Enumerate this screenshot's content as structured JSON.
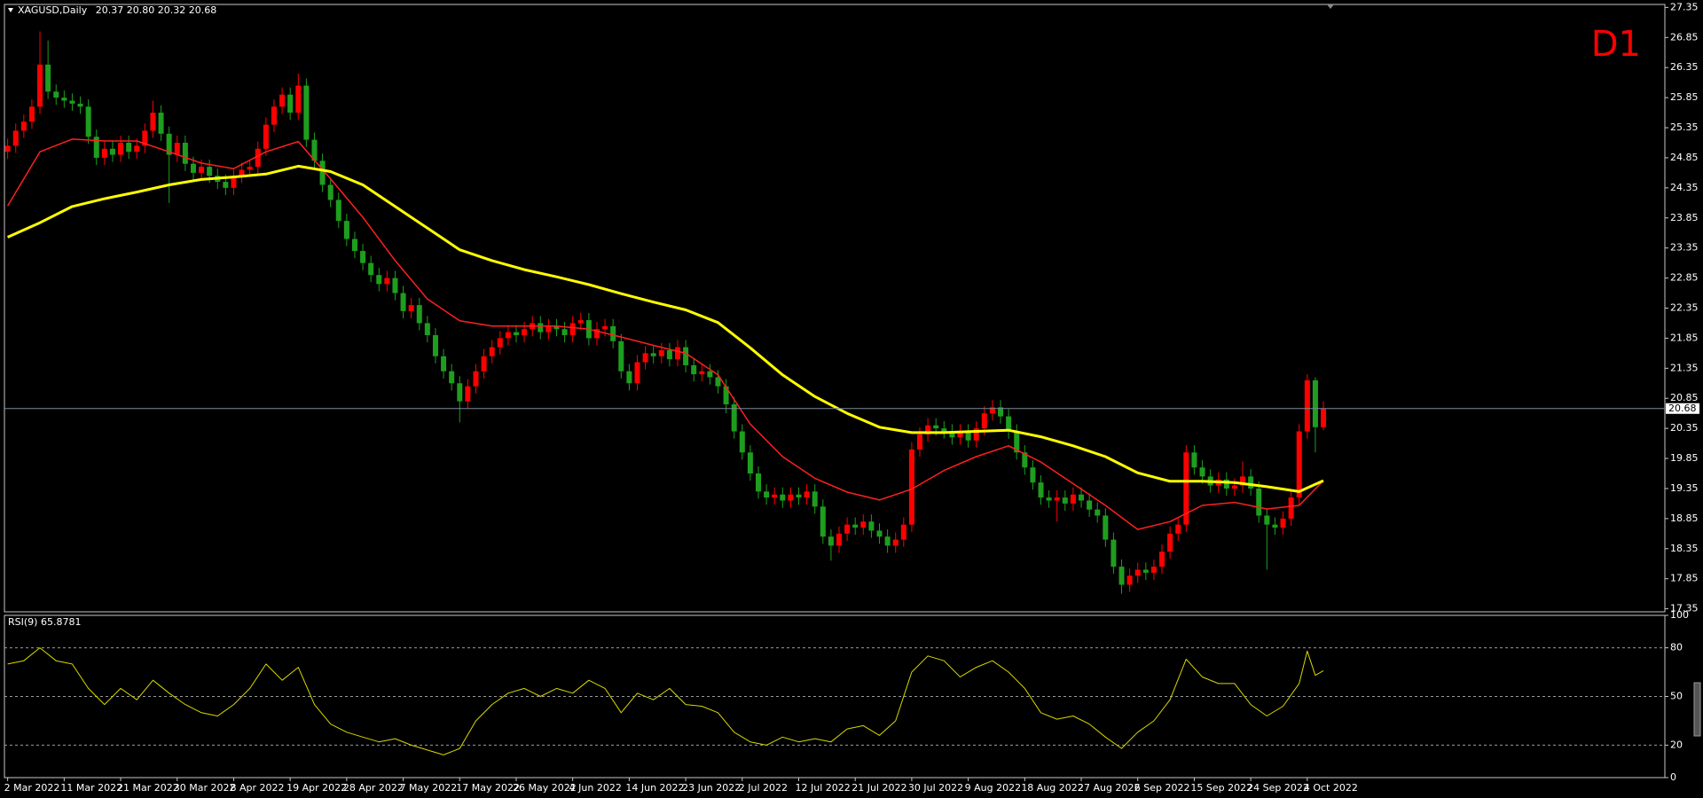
{
  "chart_data": [
    {
      "type": "candlestick",
      "title": "XAGUSD,Daily",
      "ohlc_labels": [
        "20.37",
        "20.80",
        "20.32",
        "20.68"
      ],
      "timeframe_label": "D1",
      "colors": {
        "up": "#ff0000",
        "down": "#1e9e1e"
      },
      "xlim": [
        -0.4,
        205.3
      ],
      "xticks": [
        {
          "value": 0,
          "label": "2 Mar 2022"
        },
        {
          "value": 7,
          "label": "11 Mar 2022"
        },
        {
          "value": 14,
          "label": "21 Mar 2022"
        },
        {
          "value": 21,
          "label": "30 Mar 2022"
        },
        {
          "value": 28,
          "label": "8 Apr 2022"
        },
        {
          "value": 35,
          "label": "19 Apr 2022"
        },
        {
          "value": 42,
          "label": "28 Apr 2022"
        },
        {
          "value": 49,
          "label": "7 May 2022"
        },
        {
          "value": 56,
          "label": "17 May 2022"
        },
        {
          "value": 63,
          "label": "26 May 2022"
        },
        {
          "value": 70,
          "label": "4 Jun 2022"
        },
        {
          "value": 77,
          "label": "14 Jun 2022"
        },
        {
          "value": 84,
          "label": "23 Jun 2022"
        },
        {
          "value": 91,
          "label": "2 Jul 2022"
        },
        {
          "value": 98,
          "label": "12 Jul 2022"
        },
        {
          "value": 105,
          "label": "21 Jul 2022"
        },
        {
          "value": 112,
          "label": "30 Jul 2022"
        },
        {
          "value": 119,
          "label": "9 Aug 2022"
        },
        {
          "value": 126,
          "label": "18 Aug 2022"
        },
        {
          "value": 133,
          "label": "27 Aug 2022"
        },
        {
          "value": 140,
          "label": "6 Sep 2022"
        },
        {
          "value": 147,
          "label": "15 Sep 2022"
        },
        {
          "value": 154,
          "label": "24 Sep 2022"
        },
        {
          "value": 161,
          "label": "4 Oct 2022"
        }
      ],
      "ylim": [
        17.3,
        27.4
      ],
      "yticks": [
        27.35,
        26.85,
        26.35,
        25.85,
        25.35,
        24.85,
        24.35,
        23.85,
        23.35,
        22.85,
        22.35,
        21.85,
        21.35,
        20.85,
        20.35,
        19.85,
        19.35,
        18.85,
        18.35,
        17.85,
        17.35
      ],
      "current_price": 20.68,
      "open": [
        24.95,
        25.05,
        25.3,
        25.45,
        25.7,
        26.4,
        25.95,
        25.85,
        25.8,
        25.75,
        25.7,
        25.2,
        24.85,
        25.0,
        24.9,
        25.1,
        24.95,
        25.05,
        25.3,
        25.6,
        25.25,
        24.9,
        25.1,
        24.75,
        24.6,
        24.7,
        24.55,
        24.45,
        24.35,
        24.55,
        24.65,
        24.7,
        25.0,
        25.4,
        25.7,
        25.9,
        25.6,
        26.05,
        25.15,
        24.8,
        24.4,
        24.15,
        23.8,
        23.5,
        23.3,
        23.1,
        22.9,
        22.75,
        22.85,
        22.6,
        22.3,
        22.4,
        22.1,
        21.9,
        21.55,
        21.3,
        21.1,
        20.8,
        21.05,
        21.3,
        21.55,
        21.7,
        21.85,
        21.95,
        21.9,
        22.0,
        22.1,
        21.95,
        22.05,
        22.0,
        21.9,
        22.1,
        22.15,
        21.85,
        22.0,
        22.05,
        21.8,
        21.3,
        21.1,
        21.45,
        21.6,
        21.55,
        21.65,
        21.5,
        21.7,
        21.4,
        21.25,
        21.3,
        21.2,
        21.05,
        20.75,
        20.3,
        19.95,
        19.6,
        19.3,
        19.2,
        19.25,
        19.15,
        19.25,
        19.2,
        19.3,
        19.05,
        18.55,
        18.4,
        18.6,
        18.75,
        18.7,
        18.8,
        18.65,
        18.55,
        18.4,
        18.5,
        18.75,
        20.0,
        20.25,
        20.4,
        20.35,
        20.3,
        20.2,
        20.3,
        20.15,
        20.35,
        20.6,
        20.7,
        20.55,
        20.3,
        19.95,
        19.7,
        19.45,
        19.2,
        19.15,
        19.2,
        19.1,
        19.25,
        19.15,
        19.0,
        18.9,
        18.5,
        18.05,
        17.75,
        17.9,
        18.0,
        17.95,
        18.05,
        18.3,
        18.6,
        18.75,
        19.95,
        19.7,
        19.55,
        19.4,
        19.5,
        19.35,
        19.4,
        19.55,
        19.35,
        18.9,
        18.75,
        18.7,
        18.85,
        19.2,
        20.3,
        21.15,
        20.37
      ],
      "high": [
        25.17,
        25.42,
        25.57,
        25.82,
        26.95,
        26.8,
        26.07,
        25.97,
        25.92,
        25.87,
        25.82,
        25.32,
        25.12,
        25.12,
        25.22,
        25.22,
        25.17,
        25.42,
        25.8,
        25.72,
        25.37,
        25.22,
        25.22,
        24.87,
        24.82,
        24.82,
        24.67,
        24.57,
        24.67,
        24.77,
        24.82,
        25.12,
        25.52,
        25.82,
        26.02,
        26.02,
        26.25,
        26.17,
        25.27,
        24.92,
        24.52,
        24.27,
        23.92,
        23.62,
        23.42,
        23.22,
        23.02,
        22.97,
        22.97,
        22.72,
        22.52,
        22.52,
        22.22,
        22.02,
        21.67,
        21.42,
        21.22,
        21.17,
        21.42,
        21.67,
        21.82,
        21.97,
        22.07,
        22.07,
        22.12,
        22.22,
        22.22,
        22.17,
        22.17,
        22.12,
        22.22,
        22.27,
        22.27,
        22.12,
        22.17,
        22.17,
        21.92,
        21.42,
        21.57,
        21.72,
        21.72,
        21.77,
        21.77,
        21.82,
        21.82,
        21.52,
        21.42,
        21.42,
        21.32,
        21.17,
        20.87,
        20.42,
        20.07,
        19.72,
        19.42,
        19.37,
        19.37,
        19.37,
        19.37,
        19.42,
        19.42,
        19.17,
        18.67,
        18.72,
        18.87,
        18.87,
        18.92,
        18.92,
        18.77,
        18.67,
        18.62,
        18.87,
        20.12,
        20.37,
        20.52,
        20.52,
        20.47,
        20.42,
        20.42,
        20.42,
        20.47,
        20.72,
        20.82,
        20.82,
        20.67,
        20.42,
        20.07,
        19.82,
        19.57,
        19.32,
        19.32,
        19.32,
        19.37,
        19.37,
        19.27,
        19.12,
        19.02,
        18.62,
        18.17,
        18.02,
        18.12,
        18.12,
        18.17,
        18.42,
        18.72,
        18.87,
        20.07,
        20.07,
        19.82,
        19.67,
        19.62,
        19.62,
        19.52,
        19.8,
        19.67,
        19.47,
        19.02,
        18.87,
        18.97,
        19.32,
        20.42,
        21.25,
        21.2,
        20.8
      ],
      "low": [
        24.83,
        24.93,
        25.18,
        25.33,
        25.58,
        25.83,
        25.73,
        25.68,
        25.63,
        25.58,
        25.08,
        24.73,
        24.73,
        24.78,
        24.78,
        24.83,
        24.83,
        24.93,
        25.18,
        25.13,
        24.1,
        24.78,
        24.63,
        24.48,
        24.48,
        24.43,
        24.33,
        24.23,
        24.23,
        24.43,
        24.53,
        24.58,
        24.88,
        25.28,
        25.58,
        25.48,
        25.48,
        25.03,
        24.68,
        24.28,
        24.03,
        23.68,
        23.38,
        23.18,
        22.98,
        22.78,
        22.63,
        22.63,
        22.48,
        22.18,
        22.18,
        21.98,
        21.78,
        21.43,
        21.18,
        20.98,
        20.45,
        20.68,
        20.93,
        21.18,
        21.43,
        21.58,
        21.73,
        21.78,
        21.78,
        21.88,
        21.83,
        21.83,
        21.88,
        21.78,
        21.78,
        21.98,
        21.73,
        21.73,
        21.88,
        21.68,
        21.18,
        20.98,
        20.98,
        21.33,
        21.43,
        21.43,
        21.38,
        21.38,
        21.28,
        21.13,
        21.13,
        21.08,
        20.93,
        20.6,
        20.18,
        19.83,
        19.48,
        19.18,
        19.08,
        19.08,
        19.03,
        19.03,
        19.08,
        19.08,
        18.93,
        18.43,
        18.15,
        18.28,
        18.48,
        18.58,
        18.58,
        18.53,
        18.43,
        18.28,
        18.28,
        18.38,
        18.63,
        19.88,
        20.13,
        20.23,
        20.18,
        20.08,
        20.08,
        20.03,
        20.03,
        20.23,
        20.48,
        20.43,
        20.18,
        19.83,
        19.58,
        19.33,
        19.08,
        19.03,
        18.8,
        18.98,
        18.98,
        19.03,
        18.88,
        18.78,
        18.38,
        17.93,
        17.6,
        17.63,
        17.78,
        17.83,
        17.83,
        17.93,
        18.18,
        18.48,
        18.63,
        19.58,
        19.43,
        19.28,
        19.28,
        19.23,
        19.23,
        19.28,
        19.23,
        18.78,
        18.0,
        18.58,
        18.58,
        18.73,
        19.08,
        20.18,
        19.95,
        20.32
      ],
      "close": [
        25.05,
        25.3,
        25.45,
        25.7,
        26.4,
        25.95,
        25.85,
        25.8,
        25.75,
        25.7,
        25.2,
        24.85,
        25.0,
        24.9,
        25.1,
        24.95,
        25.05,
        25.3,
        25.6,
        25.25,
        24.9,
        25.1,
        24.75,
        24.6,
        24.7,
        24.55,
        24.45,
        24.35,
        24.55,
        24.65,
        24.7,
        25.0,
        25.4,
        25.7,
        25.9,
        25.6,
        26.05,
        25.15,
        24.8,
        24.4,
        24.15,
        23.8,
        23.5,
        23.3,
        23.1,
        22.9,
        22.75,
        22.85,
        22.6,
        22.3,
        22.4,
        22.1,
        21.9,
        21.55,
        21.3,
        21.1,
        20.8,
        21.05,
        21.3,
        21.55,
        21.7,
        21.85,
        21.95,
        21.9,
        22.0,
        22.1,
        21.95,
        22.05,
        22.0,
        21.9,
        22.1,
        22.15,
        21.85,
        22.0,
        22.05,
        21.8,
        21.3,
        21.1,
        21.45,
        21.6,
        21.55,
        21.65,
        21.5,
        21.7,
        21.4,
        21.25,
        21.3,
        21.2,
        21.05,
        20.75,
        20.3,
        19.95,
        19.6,
        19.3,
        19.2,
        19.25,
        19.15,
        19.25,
        19.2,
        19.3,
        19.05,
        18.55,
        18.4,
        18.6,
        18.75,
        18.7,
        18.8,
        18.65,
        18.55,
        18.4,
        18.5,
        18.75,
        20.0,
        20.25,
        20.4,
        20.35,
        20.3,
        20.2,
        20.3,
        20.15,
        20.35,
        20.6,
        20.7,
        20.55,
        20.3,
        19.95,
        19.7,
        19.45,
        19.2,
        19.15,
        19.2,
        19.1,
        19.25,
        19.15,
        19.0,
        18.9,
        18.5,
        18.05,
        17.75,
        17.9,
        18.0,
        17.95,
        18.05,
        18.3,
        18.6,
        18.75,
        19.95,
        19.7,
        19.55,
        19.4,
        19.5,
        19.35,
        19.4,
        19.55,
        19.35,
        18.9,
        18.75,
        18.7,
        18.85,
        19.2,
        20.3,
        21.15,
        20.37,
        20.68
      ],
      "lines": [
        {
          "color": "#ff2020",
          "width": 1.5,
          "x": [
            0,
            4,
            8,
            12,
            16,
            20,
            24,
            28,
            32,
            36,
            40,
            44,
            48,
            52,
            56,
            60,
            64,
            68,
            72,
            76,
            80,
            84,
            88,
            92,
            96,
            100,
            104,
            108,
            112,
            116,
            120,
            124,
            128,
            132,
            136,
            140,
            144,
            148,
            152,
            156,
            160,
            163
          ],
          "values": [
            24.05,
            24.95,
            25.16,
            25.13,
            25.13,
            24.95,
            24.76,
            24.67,
            24.95,
            25.12,
            24.5,
            23.86,
            23.14,
            22.5,
            22.14,
            22.05,
            22.05,
            22.05,
            22.0,
            21.87,
            21.73,
            21.6,
            21.24,
            20.42,
            19.88,
            19.52,
            19.29,
            19.16,
            19.34,
            19.65,
            19.88,
            20.06,
            19.79,
            19.43,
            19.07,
            18.67,
            18.8,
            19.07,
            19.12,
            19.01,
            19.07,
            19.48
          ]
        },
        {
          "color": "#ffff00",
          "width": 3,
          "x": [
            0,
            4,
            8,
            12,
            16,
            20,
            24,
            28,
            32,
            36,
            40,
            44,
            48,
            52,
            56,
            60,
            64,
            68,
            72,
            76,
            80,
            84,
            88,
            92,
            96,
            100,
            104,
            108,
            112,
            116,
            120,
            124,
            128,
            132,
            136,
            140,
            144,
            148,
            152,
            156,
            160,
            163
          ],
          "values": [
            23.53,
            23.77,
            24.04,
            24.17,
            24.28,
            24.4,
            24.49,
            24.53,
            24.58,
            24.71,
            24.62,
            24.4,
            24.04,
            23.68,
            23.32,
            23.14,
            22.99,
            22.87,
            22.74,
            22.59,
            22.45,
            22.32,
            22.11,
            21.69,
            21.24,
            20.88,
            20.6,
            20.37,
            20.28,
            20.28,
            20.3,
            20.32,
            20.21,
            20.06,
            19.88,
            19.61,
            19.47,
            19.47,
            19.45,
            19.38,
            19.3,
            19.48
          ]
        }
      ]
    },
    {
      "type": "line",
      "title": "RSI(9)",
      "color": "#d8d800",
      "xlim": [
        -0.4,
        205.3
      ],
      "ylim": [
        0,
        100
      ],
      "yticks": [
        100,
        80,
        50,
        20,
        0
      ],
      "x": [
        0,
        2,
        4,
        6,
        8,
        10,
        12,
        14,
        16,
        18,
        20,
        22,
        24,
        26,
        28,
        30,
        32,
        34,
        36,
        38,
        40,
        42,
        44,
        46,
        48,
        50,
        52,
        54,
        56,
        58,
        60,
        62,
        64,
        66,
        68,
        70,
        72,
        74,
        76,
        78,
        80,
        82,
        84,
        86,
        88,
        90,
        92,
        94,
        96,
        98,
        100,
        102,
        104,
        106,
        108,
        110,
        112,
        114,
        116,
        118,
        120,
        122,
        124,
        126,
        128,
        130,
        132,
        134,
        136,
        138,
        140,
        142,
        144,
        146,
        148,
        150,
        152,
        154,
        156,
        158,
        160,
        161,
        162,
        163
      ],
      "values": [
        70,
        72,
        80,
        72,
        70,
        55,
        45,
        55,
        48,
        60,
        52,
        45,
        40,
        38,
        45,
        55,
        70,
        60,
        68,
        45,
        33,
        28,
        25,
        22,
        24,
        20,
        17,
        14,
        18,
        35,
        45,
        52,
        55,
        50,
        55,
        52,
        60,
        55,
        40,
        52,
        48,
        55,
        45,
        44,
        40,
        28,
        22,
        20,
        25,
        22,
        24,
        22,
        30,
        32,
        26,
        35,
        65,
        75,
        72,
        62,
        68,
        72,
        65,
        55,
        40,
        36,
        38,
        33,
        25,
        18,
        28,
        35,
        48,
        73,
        62,
        58,
        58,
        45,
        38,
        44,
        58,
        78,
        63,
        65.8781
      ]
    }
  ]
}
